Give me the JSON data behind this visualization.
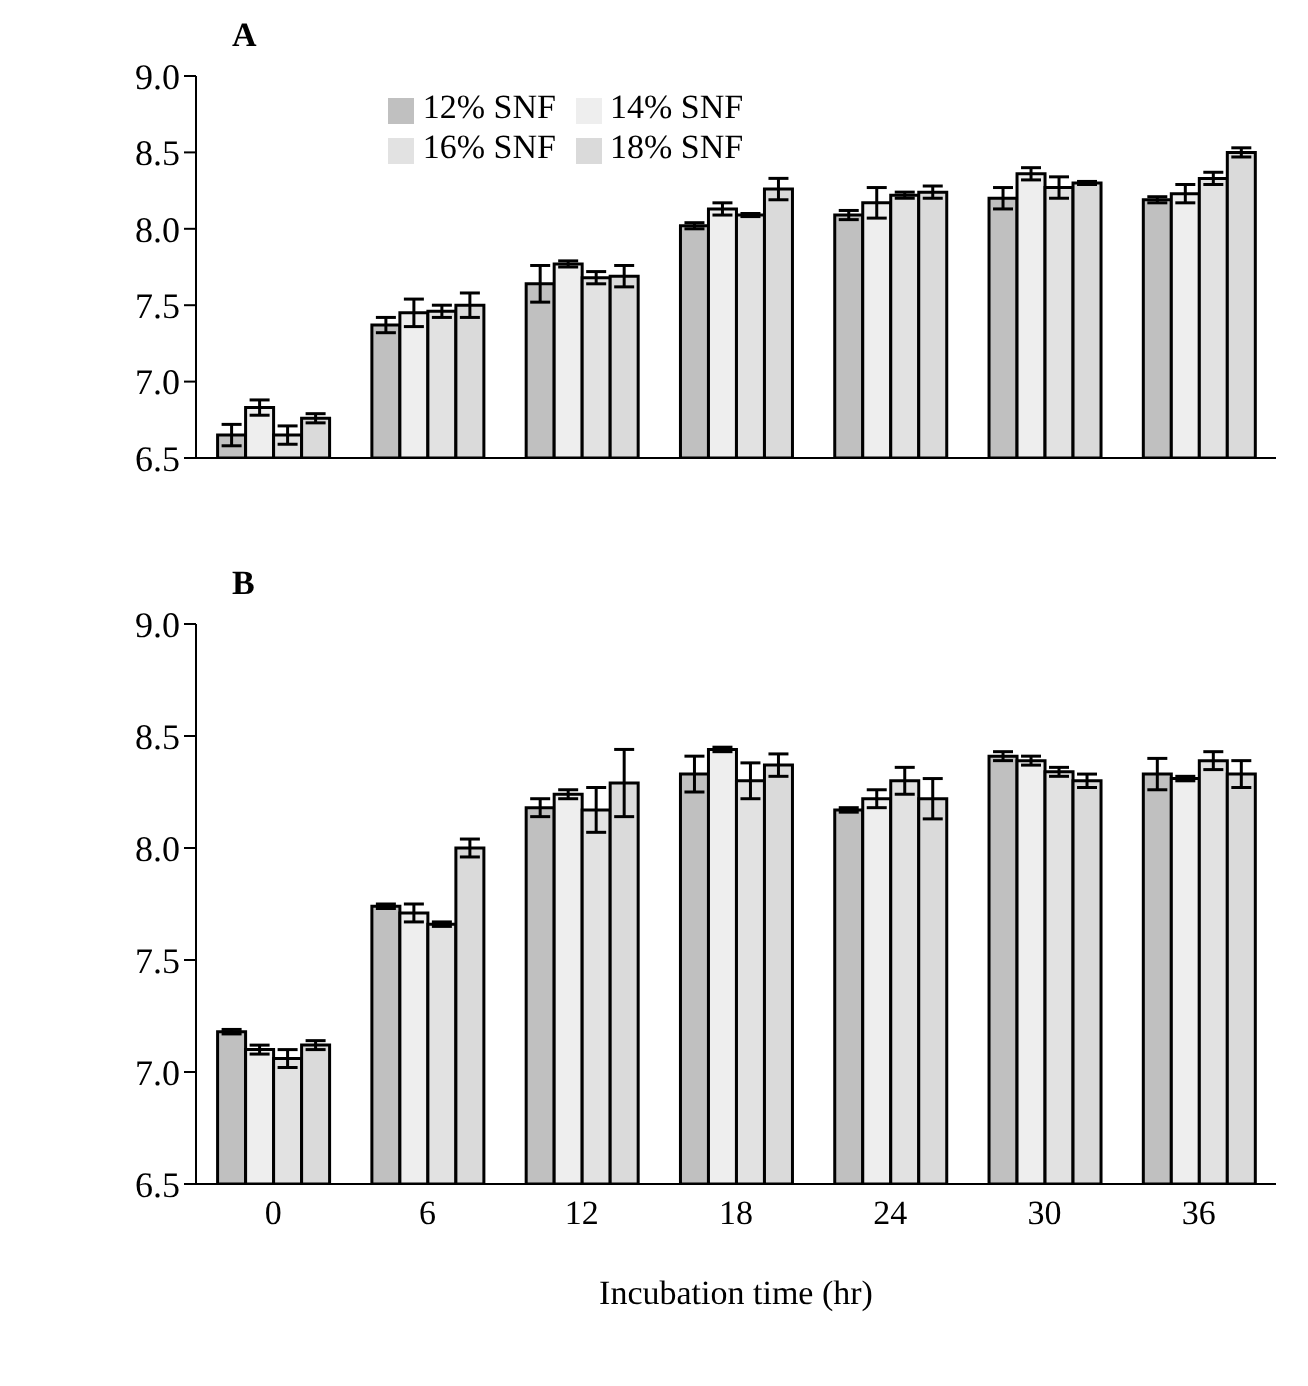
{
  "chart_data": [
    {
      "type": "bar",
      "title": "A",
      "categories": [
        "0",
        "6",
        "12",
        "18",
        "24",
        "30",
        "36"
      ],
      "tick_labels": "y",
      "legend": "top left",
      "grid": false,
      "ylim": [
        6.5,
        9.0
      ],
      "yticks": [
        {
          "value": 6.5,
          "label": "6.5"
        },
        {
          "value": 7,
          "label": "7.0"
        },
        {
          "value": 7.5,
          "label": "7.5"
        },
        {
          "value": 8,
          "label": "8.0"
        },
        {
          "value": 8.5,
          "label": "8.5"
        },
        {
          "value": 9,
          "label": "9.0"
        }
      ],
      "series": [
        {
          "name": "12% SNF",
          "color": "#c0c0c0",
          "values": [
            6.65,
            7.37,
            7.64,
            8.02,
            8.09,
            8.2,
            8.19
          ],
          "errors": [
            0.07,
            0.05,
            0.12,
            0.02,
            0.03,
            0.07,
            0.02
          ]
        },
        {
          "name": "14% SNF",
          "color": "#eeeeee",
          "values": [
            6.83,
            7.45,
            7.77,
            8.13,
            8.17,
            8.36,
            8.23
          ],
          "errors": [
            0.05,
            0.09,
            0.02,
            0.04,
            0.1,
            0.04,
            0.06
          ]
        },
        {
          "name": "16% SNF",
          "color": "#e2e2e2",
          "values": [
            6.65,
            7.46,
            7.68,
            8.09,
            8.22,
            8.27,
            8.33
          ],
          "errors": [
            0.06,
            0.04,
            0.04,
            0.01,
            0.02,
            0.07,
            0.04
          ]
        },
        {
          "name": "18% SNF",
          "color": "#dadada",
          "values": [
            6.76,
            7.5,
            7.69,
            8.26,
            8.24,
            8.3,
            8.5
          ],
          "errors": [
            0.03,
            0.08,
            0.07,
            0.07,
            0.04,
            0.01,
            0.03
          ]
        }
      ]
    },
    {
      "type": "bar",
      "title": "B",
      "xlabel": "Incubation time (hr)",
      "categories": [
        "0",
        "6",
        "12",
        "18",
        "24",
        "30",
        "36"
      ],
      "legend": false,
      "grid": false,
      "ylim": [
        6.5,
        9.0
      ],
      "yticks": [
        {
          "value": 6.5,
          "label": "6.5"
        },
        {
          "value": 7,
          "label": "7.0"
        },
        {
          "value": 7.5,
          "label": "7.5"
        },
        {
          "value": 8,
          "label": "8.0"
        },
        {
          "value": 8.5,
          "label": "8.5"
        },
        {
          "value": 9,
          "label": "9.0"
        }
      ],
      "series": [
        {
          "color": "#c0c0c0",
          "values": [
            7.18,
            7.74,
            8.18,
            8.33,
            8.17,
            8.41,
            8.33
          ],
          "errors": [
            0.01,
            0.01,
            0.04,
            0.08,
            0.01,
            0.02,
            0.07
          ]
        },
        {
          "color": "#eeeeee",
          "values": [
            7.1,
            7.71,
            8.24,
            8.44,
            8.22,
            8.39,
            8.31
          ],
          "errors": [
            0.02,
            0.04,
            0.02,
            0.01,
            0.04,
            0.02,
            0.01
          ]
        },
        {
          "color": "#e2e2e2",
          "values": [
            7.06,
            7.66,
            8.17,
            8.3,
            8.3,
            8.34,
            8.39
          ],
          "errors": [
            0.04,
            0.01,
            0.1,
            0.08,
            0.06,
            0.02,
            0.04
          ]
        },
        {
          "color": "#dadada",
          "values": [
            7.12,
            8.0,
            8.29,
            8.37,
            8.22,
            8.3,
            8.33
          ],
          "errors": [
            0.02,
            0.04,
            0.15,
            0.05,
            0.09,
            0.03,
            0.06
          ]
        }
      ]
    }
  ]
}
